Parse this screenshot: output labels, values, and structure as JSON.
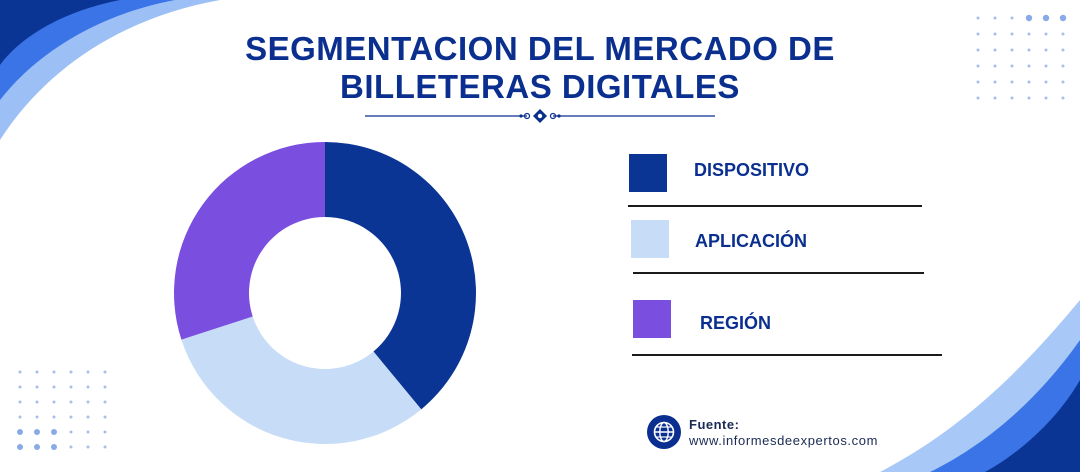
{
  "title": {
    "line1": "SEGMENTACION DEL MERCADO DE",
    "line2": "BILLETERAS DIGITALES"
  },
  "colors": {
    "primary": "#0a3595",
    "light_blue": "#c7dcf7",
    "purple": "#7a4fe0",
    "accent_blue": "#2f6ee6",
    "dot_color": "#8aa9e8"
  },
  "chart_data": {
    "type": "pie",
    "donut": true,
    "start_angle_deg": 0,
    "direction": "clockwise",
    "categories": [
      "DISPOSITIVO",
      "APLICACIÓN",
      "REGIÓN"
    ],
    "values": [
      39,
      31,
      30
    ],
    "colors": [
      "#0a3595",
      "#c7dcf7",
      "#7a4fe0"
    ],
    "data_labels": false,
    "legend_placement": "right"
  },
  "legend": {
    "items": [
      {
        "label": "DISPOSITIVO",
        "color": "#0a3595"
      },
      {
        "label": "APLICACIÓN",
        "color": "#c7dcf7"
      },
      {
        "label": "REGIÓN",
        "color": "#7a4fe0"
      }
    ]
  },
  "source": {
    "label": "Fuente:",
    "url": "www.informesdeexpertos.com",
    "icon": "globe-icon"
  }
}
